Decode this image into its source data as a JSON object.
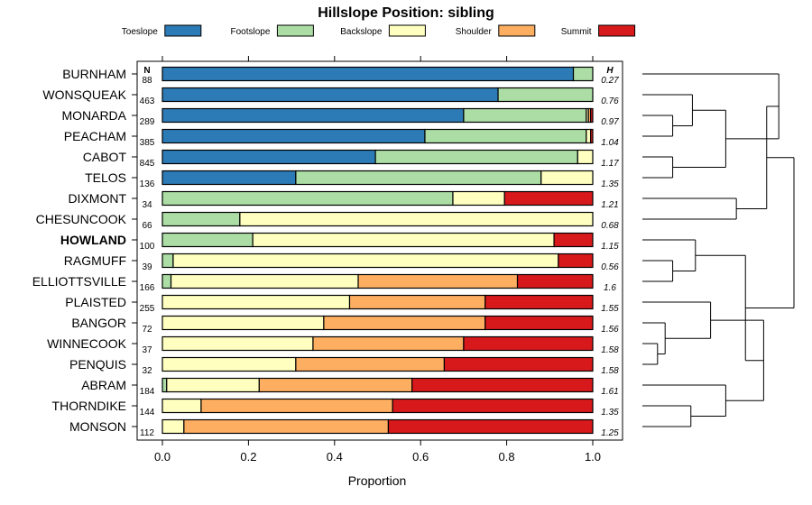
{
  "chart_data": {
    "type": "bar",
    "orientation": "horizontal",
    "stacked": true,
    "title": "Hillslope Position: sibling",
    "xlabel": "Proportion",
    "ylabel": "",
    "xlim": [
      0,
      1
    ],
    "x_ticks": [
      0.0,
      0.2,
      0.4,
      0.6,
      0.8,
      1.0
    ],
    "x_tick_labels": [
      "0.0",
      "0.2",
      "0.4",
      "0.6",
      "0.8",
      "1.0"
    ],
    "n_header": "N",
    "h_header": "H",
    "legend": [
      {
        "name": "Toeslope",
        "color": "#2C7BB6"
      },
      {
        "name": "Footslope",
        "color": "#ABDDA4"
      },
      {
        "name": "Backslope",
        "color": "#FFFFBF"
      },
      {
        "name": "Shoulder",
        "color": "#FDAE61"
      },
      {
        "name": "Summit",
        "color": "#D7191C"
      }
    ],
    "categories": [
      "BURNHAM",
      "WONSQUEAK",
      "MONARDA",
      "PEACHAM",
      "CABOT",
      "TELOS",
      "DIXMONT",
      "CHESUNCOOK",
      "HOWLAND",
      "RAGMUFF",
      "ELLIOTTSVILLE",
      "PLAISTED",
      "BANGOR",
      "WINNECOOK",
      "PENQUIS",
      "ABRAM",
      "THORNDIKE",
      "MONSON"
    ],
    "highlight": "HOWLAND",
    "n_values": [
      "88",
      "463",
      "289",
      "385",
      "845",
      "136",
      "34",
      "66",
      "100",
      "39",
      "166",
      "255",
      "72",
      "37",
      "32",
      "184",
      "144",
      "112"
    ],
    "h_values": [
      "0.27",
      "0.76",
      "0.97",
      "1.04",
      "1.17",
      "1.35",
      "1.21",
      "0.68",
      "1.15",
      "0.56",
      "1.6",
      "1.55",
      "1.56",
      "1.58",
      "1.58",
      "1.61",
      "1.35",
      "1.25"
    ],
    "series": [
      {
        "name": "Toeslope",
        "values": [
          0.955,
          0.78,
          0.7,
          0.61,
          0.495,
          0.31,
          0,
          0,
          0,
          0,
          0,
          0,
          0,
          0,
          0,
          0,
          0,
          0
        ]
      },
      {
        "name": "Footslope",
        "values": [
          0.045,
          0.22,
          0.285,
          0.375,
          0.47,
          0.57,
          0.675,
          0.18,
          0.21,
          0.025,
          0.02,
          0,
          0,
          0,
          0,
          0.01,
          0,
          0
        ]
      },
      {
        "name": "Backslope",
        "values": [
          0,
          0,
          0.005,
          0.01,
          0.035,
          0.12,
          0.12,
          0.82,
          0.7,
          0.895,
          0.435,
          0.435,
          0.375,
          0.35,
          0.31,
          0.215,
          0.09,
          0.05
        ]
      },
      {
        "name": "Shoulder",
        "values": [
          0,
          0,
          0.005,
          0,
          0,
          0,
          0,
          0,
          0,
          0,
          0.37,
          0.315,
          0.375,
          0.35,
          0.345,
          0.355,
          0.445,
          0.475
        ]
      },
      {
        "name": "Summit",
        "values": [
          0,
          0,
          0.005,
          0.005,
          0,
          0,
          0.205,
          0,
          0.09,
          0.08,
          0.175,
          0.25,
          0.25,
          0.3,
          0.345,
          0.42,
          0.465,
          0.475
        ]
      }
    ],
    "dendrogram_merges": [
      [
        -3,
        -4
      ],
      [
        -2,
        1
      ],
      [
        -5,
        -6
      ],
      [
        2,
        3
      ],
      [
        -7,
        -8
      ],
      [
        -1,
        4
      ],
      [
        -14,
        -15
      ],
      [
        -13,
        7
      ],
      [
        -17,
        -18
      ],
      [
        -10,
        -11
      ],
      [
        -9,
        10
      ],
      [
        -12,
        8
      ],
      [
        -16,
        9
      ],
      [
        12,
        13
      ],
      [
        5,
        6
      ],
      [
        11,
        14
      ],
      [
        15,
        16
      ]
    ],
    "dendrogram_heights": [
      0.2,
      0.33,
      0.2,
      0.55,
      0.62,
      0.9,
      0.1,
      0.15,
      0.32,
      0.2,
      0.35,
      0.45,
      0.55,
      0.8,
      0.82,
      0.68,
      1.0
    ]
  }
}
